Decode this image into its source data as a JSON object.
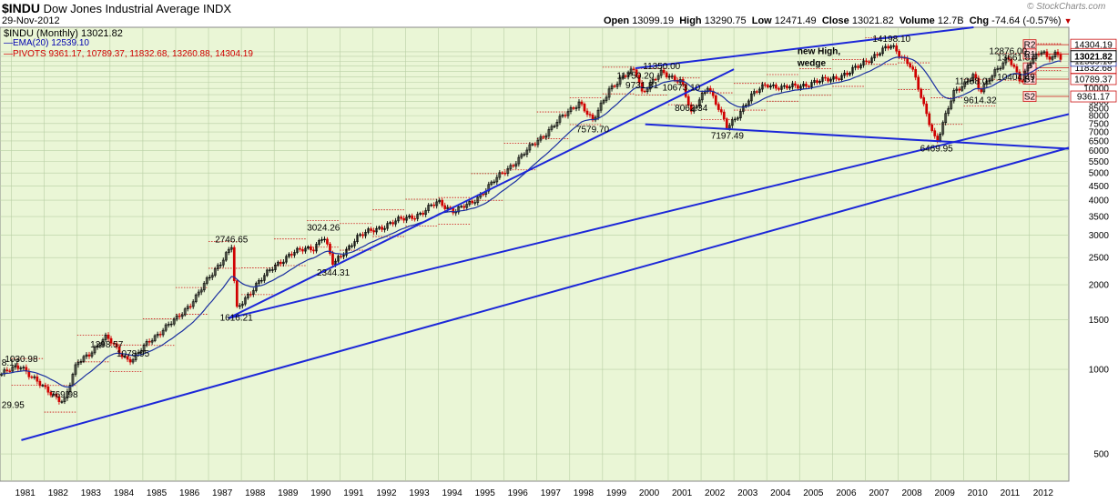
{
  "header": {
    "symbol": "$INDU",
    "name": "Dow Jones Industrial Average",
    "exchange": "INDX",
    "date": "29-Nov-2012",
    "open_label": "Open",
    "open": "13099.19",
    "high_label": "High",
    "high": "13290.75",
    "low_label": "Low",
    "low": "12471.49",
    "close_label": "Close",
    "close": "13021.82",
    "volume_label": "Volume",
    "volume": "12.7B",
    "chg_label": "Chg",
    "chg": "-74.64 (-0.57%)",
    "watermark": "© StockCharts.com"
  },
  "legend": {
    "main": "$INDU (Monthly) 13021.82",
    "ema": "EMA(20) 12539.10",
    "pivots": "PIVOTS 9361.17, 10789.37, 11832.68, 13260.88, 14304.19"
  },
  "colors": {
    "plot_bg": "#eaf6d6",
    "grid": "#b8cfa4",
    "up_candle": "#000000",
    "down_candle": "#d00000",
    "ema": "#1a2fa0",
    "trendline": "#1c27d8",
    "pivot": "#cc1111",
    "pivot_box": "#ffd8d8",
    "last_price_box": "#000000"
  },
  "chart_data": {
    "type": "candlestick",
    "x_ticks": [
      "1981",
      "1982",
      "1983",
      "1984",
      "1985",
      "1986",
      "1987",
      "1988",
      "1989",
      "1990",
      "1991",
      "1992",
      "1993",
      "1994",
      "1995",
      "1996",
      "1997",
      "1998",
      "1999",
      "2000",
      "2001",
      "2002",
      "2003",
      "2004",
      "2005",
      "2006",
      "2007",
      "2008",
      "2009",
      "2010",
      "2011",
      "2012"
    ],
    "y_ticks": [
      500,
      1000,
      1500,
      2000,
      2500,
      3000,
      3500,
      4000,
      4500,
      5000,
      5500,
      6000,
      6500,
      7000,
      7500,
      8000,
      8500,
      9000,
      9500,
      10000,
      10500,
      11000,
      11500,
      12000,
      12500,
      13000,
      13500
    ],
    "y_scale": "log",
    "ylim": [
      400,
      16500
    ],
    "xlim": [
      1980.65,
      2013.2
    ],
    "price_anchors": [
      [
        1980.7,
        963
      ],
      [
        1981.3,
        1030.98
      ],
      [
        1982.0,
        850
      ],
      [
        1982.6,
        769.98
      ],
      [
        1983.0,
        1050
      ],
      [
        1983.9,
        1298.57
      ],
      [
        1984.5,
        1090
      ],
      [
        1984.7,
        1078.95
      ],
      [
        1985.2,
        1270
      ],
      [
        1986.0,
        1500
      ],
      [
        1986.6,
        1800
      ],
      [
        1987.0,
        2100
      ],
      [
        1987.7,
        2746.65
      ],
      [
        1987.85,
        1616.21
      ],
      [
        1988.5,
        2050
      ],
      [
        1989.5,
        2600
      ],
      [
        1990.2,
        2700
      ],
      [
        1990.5,
        3024.26
      ],
      [
        1990.8,
        2344.31
      ],
      [
        1991.5,
        2950
      ],
      [
        1992.5,
        3300
      ],
      [
        1993.5,
        3600
      ],
      [
        1994.0,
        3950
      ],
      [
        1994.5,
        3650
      ],
      [
        1995.0,
        3900
      ],
      [
        1995.8,
        4800
      ],
      [
        1996.5,
        5700
      ],
      [
        1997.3,
        7000
      ],
      [
        1998.3,
        9000
      ],
      [
        1998.7,
        7579.7
      ],
      [
        1999.2,
        10000
      ],
      [
        2000.0,
        11750.2
      ],
      [
        2000.2,
        9731.81
      ],
      [
        2000.8,
        11350
      ],
      [
        2001.4,
        10673.1
      ],
      [
        2001.7,
        8062.34
      ],
      [
        2002.2,
        10300
      ],
      [
        2002.8,
        7197.49
      ],
      [
        2003.5,
        9300
      ],
      [
        2004.0,
        10400
      ],
      [
        2004.5,
        10000
      ],
      [
        2005.5,
        10500
      ],
      [
        2006.5,
        11300
      ],
      [
        2007.0,
        12500
      ],
      [
        2007.8,
        14198.1
      ],
      [
        2008.4,
        12000
      ],
      [
        2008.8,
        8500
      ],
      [
        2009.17,
        6469.95
      ],
      [
        2009.7,
        9600
      ],
      [
        2010.3,
        11258.01
      ],
      [
        2010.5,
        9614.32
      ],
      [
        2011.0,
        11800
      ],
      [
        2011.35,
        12876
      ],
      [
        2011.75,
        10404.49
      ],
      [
        2012.0,
        12600
      ],
      [
        2012.4,
        13661.87
      ],
      [
        2012.55,
        12500
      ],
      [
        2012.8,
        13300
      ],
      [
        2012.92,
        13021.82
      ]
    ],
    "ema_period": 20,
    "last_values": {
      "close": 13021.82,
      "ema": 12539.1
    },
    "pivots": {
      "R2": 14304.19,
      "R1": 13260.88,
      "P": 11832.68,
      "S1": 10789.37,
      "S2": 9361.17
    },
    "pivot_labels": [
      "R2",
      "R1",
      "P",
      "S1",
      "S2"
    ],
    "annotations": [
      {
        "text": "8.17",
        "x": 1980.7,
        "y": 1000
      },
      {
        "text": "29.95",
        "x": 1980.7,
        "y": 790
      },
      {
        "text": "1030.98",
        "x": 1981.3,
        "y": 1030.98
      },
      {
        "text": "769.98",
        "x": 1982.6,
        "y": 769.98
      },
      {
        "text": "1298.57",
        "x": 1983.9,
        "y": 1298.57
      },
      {
        "text": "1078.95",
        "x": 1984.7,
        "y": 1078.95
      },
      {
        "text": "2746.65",
        "x": 1987.7,
        "y": 2746.65
      },
      {
        "text": "1616.21",
        "x": 1987.85,
        "y": 1616.21
      },
      {
        "text": "3024.26",
        "x": 1990.5,
        "y": 3024.26
      },
      {
        "text": "2344.31",
        "x": 1990.8,
        "y": 2344.31
      },
      {
        "text": "7579.70",
        "x": 1998.7,
        "y": 7579.7
      },
      {
        "text": "11750.20",
        "x": 2000.0,
        "y": 11750.2
      },
      {
        "text": "9731.81",
        "x": 2000.2,
        "y": 9731.81
      },
      {
        "text": "11350.00",
        "x": 2000.8,
        "y": 11350
      },
      {
        "text": "10673.10",
        "x": 2001.4,
        "y": 10673.1
      },
      {
        "text": "8062.34",
        "x": 2001.7,
        "y": 8062.34
      },
      {
        "text": "7197.49",
        "x": 2002.8,
        "y": 7197.49
      },
      {
        "text": "14198.10",
        "x": 2007.8,
        "y": 14198.1
      },
      {
        "text": "6469.95",
        "x": 2009.17,
        "y": 6469.95
      },
      {
        "text": "11258.01",
        "x": 2010.3,
        "y": 11258.01
      },
      {
        "text": "9614.32",
        "x": 2010.5,
        "y": 9614.32
      },
      {
        "text": "12876.00",
        "x": 2011.35,
        "y": 12876
      },
      {
        "text": "10404.49",
        "x": 2011.75,
        "y": 10404.49
      },
      {
        "text": "13661.87",
        "x": 2012.4,
        "y": 13661.87
      }
    ],
    "note": {
      "line1": "new High,",
      "line2": "wedge",
      "x": 2000.0,
      "y": 14500
    },
    "trendlines": [
      {
        "name": "wedge-upper",
        "from": [
          2000.0,
          11800
        ],
        "to": [
          2010.3,
          16500
        ]
      },
      {
        "name": "fast-uptrend",
        "from": [
          1987.6,
          1520
        ],
        "to": [
          2003.0,
          11700
        ]
      },
      {
        "name": "wedge-lower",
        "from": [
          2000.3,
          7450
        ],
        "to": [
          2013.2,
          6100
        ]
      },
      {
        "name": "long-uptrend-1",
        "from": [
          1987.6,
          1520
        ],
        "to": [
          2013.2,
          8100
        ]
      },
      {
        "name": "long-uptrend-2",
        "from": [
          1981.3,
          560
        ],
        "to": [
          2013.2,
          6150
        ]
      }
    ]
  }
}
